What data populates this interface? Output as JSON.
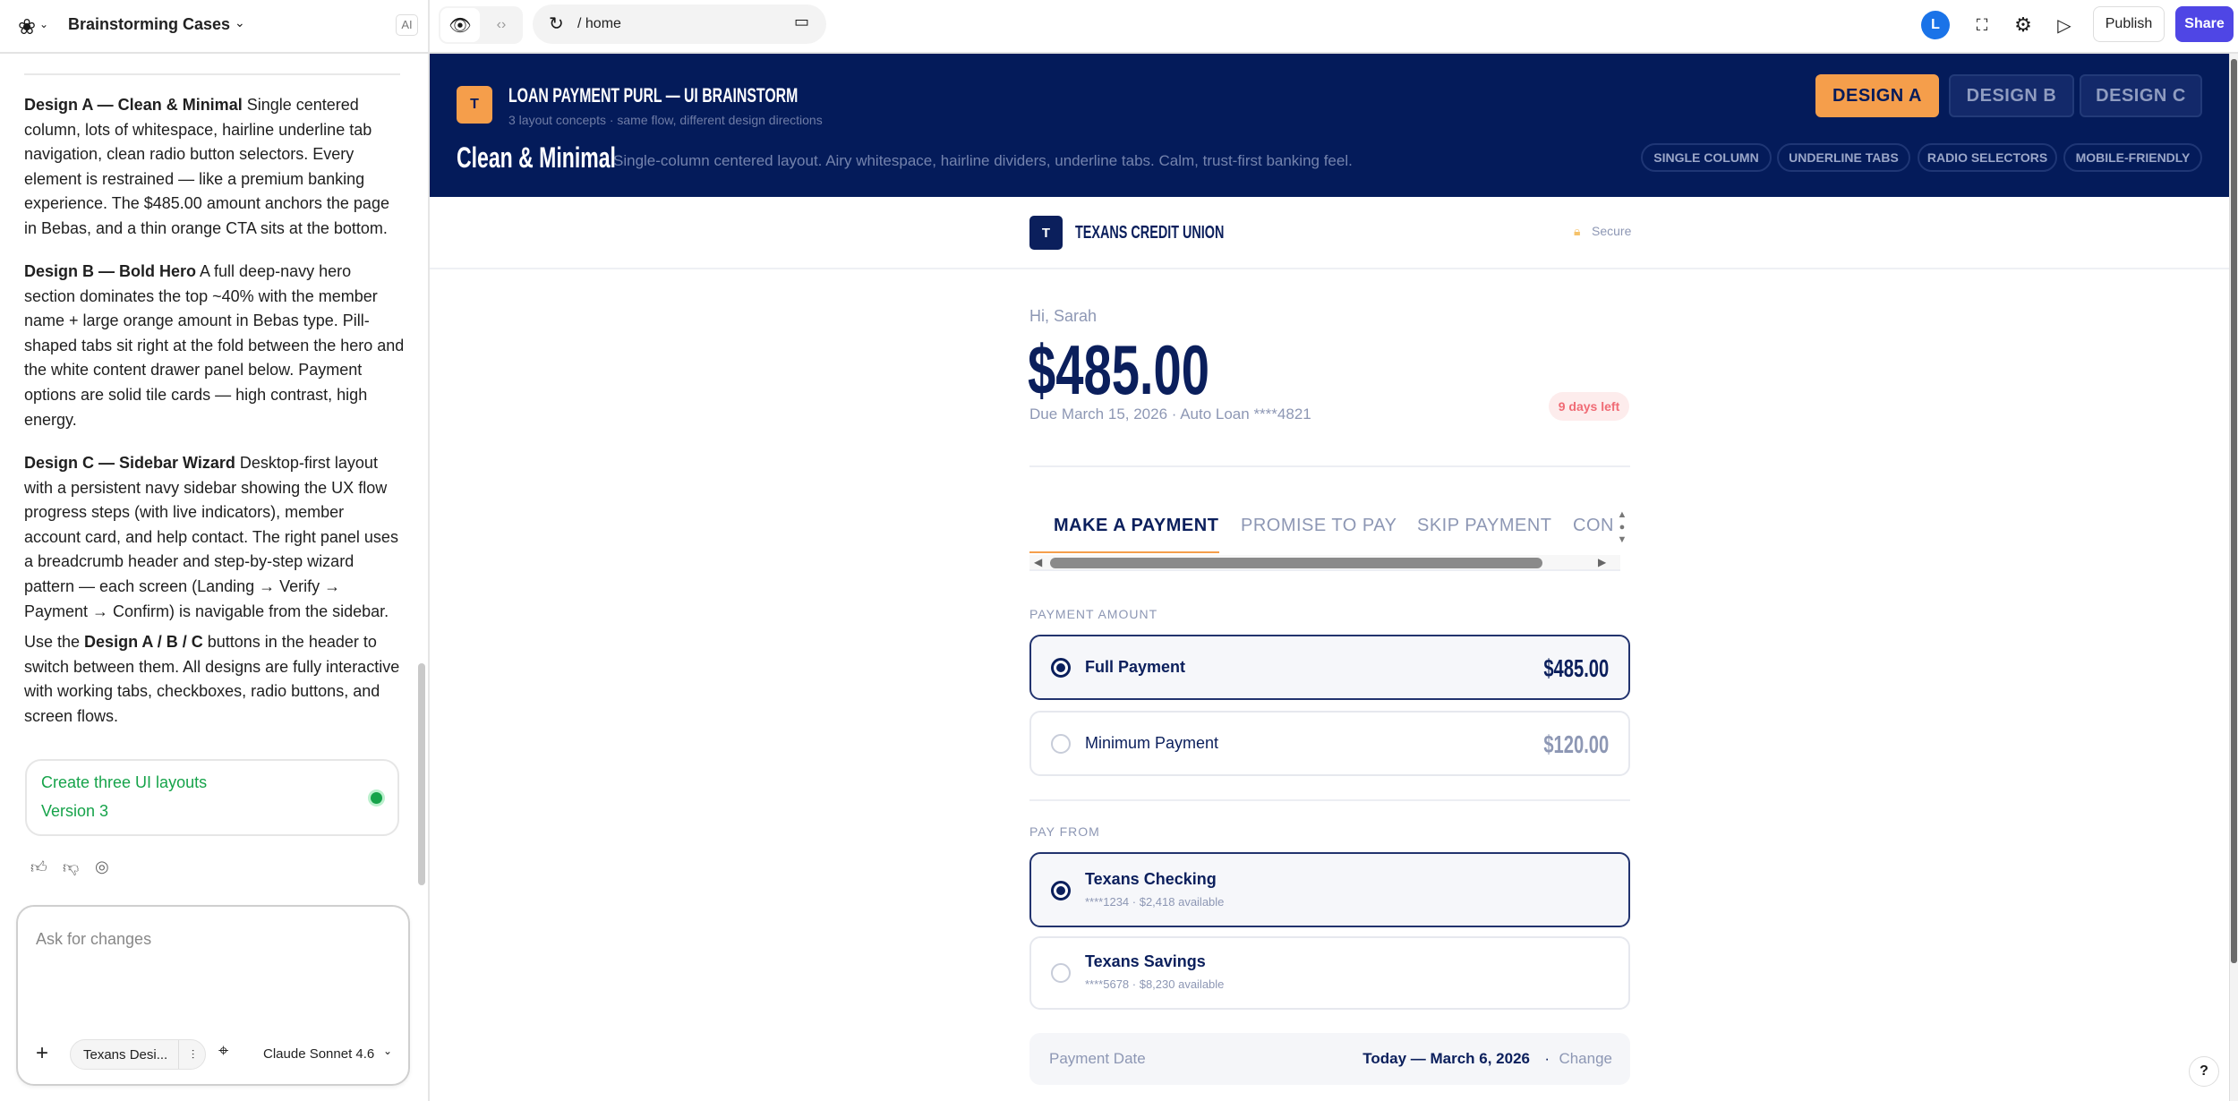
{
  "left_panel": {
    "project_title": "Brainstorming Cases",
    "ai_badge": "AI",
    "paragraphs": [
      {
        "bold": "Design A — Clean & Minimal",
        "text": " Single centered column, lots of whitespace, hairline underline tab navigation, clean radio button selectors. Every element is restrained — like a premium banking experience. The $485.00 amount anchors the page in Bebas, and a thin orange CTA sits at the bottom."
      },
      {
        "bold": "Design B — Bold Hero",
        "text": " A full deep-navy hero section dominates the top ~40% with the member name + large orange amount in Bebas type. Pill-shaped tabs sit right at the fold between the hero and the white content drawer panel below. Payment options are solid tile cards — high contrast, high energy."
      },
      {
        "bold": "Design C — Sidebar Wizard",
        "text": " Desktop-first layout with a persistent navy sidebar showing the UX flow progress steps (with live indicators), member account card, and help contact. The right panel uses a breadcrumb header and step-by-step wizard pattern — each screen (Landing → Verify → Payment → Confirm) is navigable from the sidebar."
      },
      {
        "pre": "Use the ",
        "bold": "Design A / B / C",
        "text": " buttons in the header to switch between them. All designs are fully interactive with working tabs, checkboxes, radio buttons, and screen flows."
      }
    ],
    "version_card": {
      "title": "Create three UI layouts",
      "version": "Version 3",
      "status_color": "#16a34a"
    },
    "input": {
      "placeholder": "Ask for changes",
      "context_chip": "Texans Desi...",
      "model": "Claude Sonnet 4.6"
    }
  },
  "topbar": {
    "path": "/ home",
    "avatar_initial": "L",
    "publish": "Publish",
    "share": "Share",
    "share_color": "#4f46e5"
  },
  "banner": {
    "logo_letter": "T",
    "title": "LOAN PAYMENT PURL — UI BRAINSTORM",
    "subtitle": "3 layout concepts · same flow, different design directions",
    "design_name": "Clean & Minimal",
    "design_desc": "Single-column centered layout. Airy whitespace, hairline dividers, underline tabs. Calm, trust-first banking feel.",
    "design_buttons": [
      {
        "label": "DESIGN A",
        "active": true
      },
      {
        "label": "DESIGN B",
        "active": false
      },
      {
        "label": "DESIGN C",
        "active": false
      }
    ],
    "tags": [
      "SINGLE COLUMN",
      "UNDERLINE TABS",
      "RADIO SELECTORS",
      "MOBILE-FRIENDLY"
    ],
    "accent": "#f59e4b",
    "navy": "#041b5a"
  },
  "app": {
    "brand_letter": "T",
    "brand_name": "TEXANS CREDIT UNION",
    "secure": "Secure",
    "greeting": "Hi, Sarah",
    "amount": "$485.00",
    "due_line": "Due March 15, 2026 · Auto Loan ****4821",
    "days_badge": "9 days left",
    "tabs": [
      {
        "label": "MAKE A PAYMENT",
        "active": true
      },
      {
        "label": "PROMISE TO PAY",
        "active": false
      },
      {
        "label": "SKIP PAYMENT",
        "active": false
      },
      {
        "label": "CON",
        "active": false
      }
    ],
    "payment_amount_label": "PAYMENT AMOUNT",
    "amount_options": [
      {
        "label": "Full Payment",
        "value": "$485.00",
        "selected": true
      },
      {
        "label": "Minimum Payment",
        "value": "$120.00",
        "selected": false
      }
    ],
    "pay_from_label": "PAY FROM",
    "accounts": [
      {
        "name": "Texans Checking",
        "detail": "****1234 · $2,418 available",
        "selected": true
      },
      {
        "name": "Texans Savings",
        "detail": "****5678 · $8,230 available",
        "selected": false
      }
    ],
    "payment_date": {
      "label": "Payment Date",
      "value": "Today — March 6, 2026",
      "sep": "·",
      "change": "Change"
    }
  },
  "help": "?"
}
